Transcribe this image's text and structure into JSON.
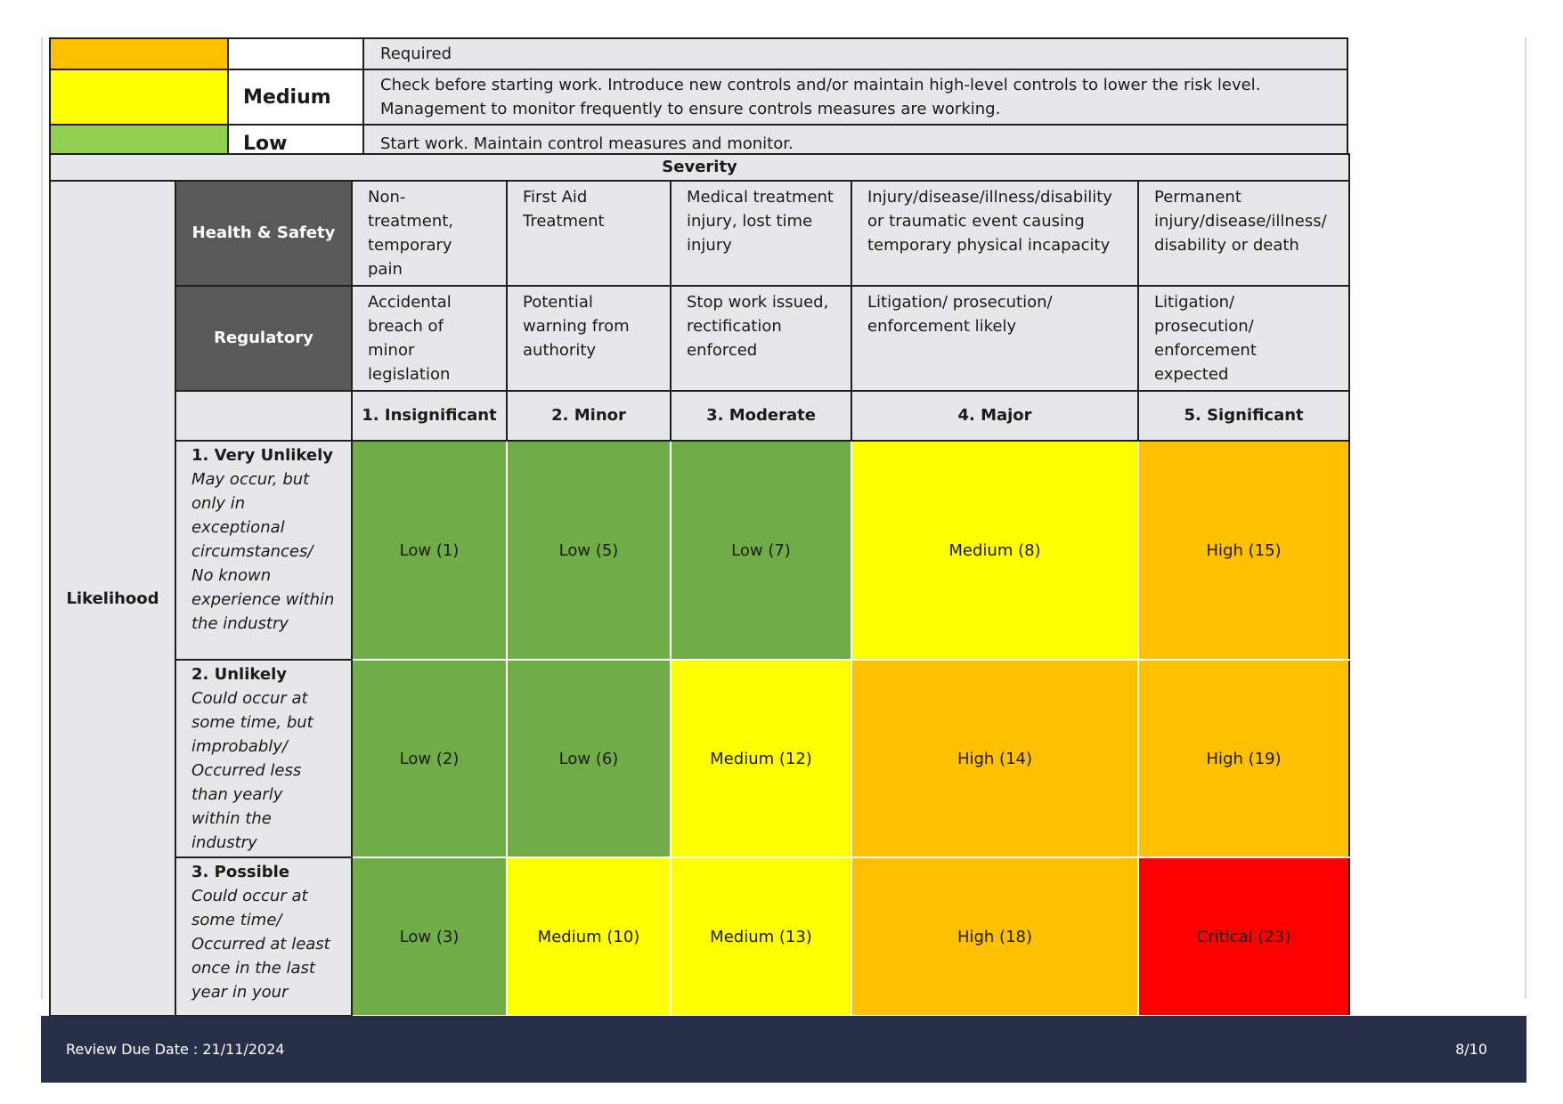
{
  "legend": [
    {
      "level": "",
      "color": "#ffc000",
      "description": "Required"
    },
    {
      "level": "Medium",
      "color": "#ffff00",
      "description": "Check before starting work. Introduce new controls and/or maintain high-level controls to lower the risk level. Management to monitor frequently to ensure controls measures are working."
    },
    {
      "level": "Low",
      "color": "#92d050",
      "description": "Start work. Maintain control measures and monitor."
    }
  ],
  "matrix": {
    "severity_title": "Severity",
    "likelihood_title": "Likelihood",
    "health_safety_label": "Health & Safety",
    "regulatory_label": "Regulatory",
    "health_safety": [
      "Non-treatment, temporary pain",
      "First Aid Treatment",
      "Medical treatment injury, lost time injury",
      "Injury/disease/illness/disability or traumatic event causing temporary physical incapacity",
      "Permanent injury/disease/illness/ disability or death"
    ],
    "regulatory": [
      "Accidental breach of minor legislation",
      "Potential warning from authority",
      "Stop work issued, rectification enforced",
      "Litigation/ prosecution/ enforcement likely",
      "Litigation/ prosecution/ enforcement expected"
    ],
    "severity_levels": [
      "1. Insignificant",
      "2. Minor",
      "3. Moderate",
      "4. Major",
      "5. Significant"
    ],
    "likelihood": [
      {
        "title": "1. Very Unlikely",
        "desc": "May occur, but only in exceptional circumstances/ No known experience within the industry"
      },
      {
        "title": "2. Unlikely",
        "desc": "Could occur at some time, but improbably/ Occurred less than yearly within the industry"
      },
      {
        "title": "3. Possible",
        "desc": "Could occur at some time/ Occurred at least once in the last year in your"
      }
    ],
    "rows": [
      [
        "Low (1)",
        "Low (5)",
        "Low (7)",
        "Medium (8)",
        "High (15)"
      ],
      [
        "Low (2)",
        "Low (6)",
        "Medium (12)",
        "High (14)",
        "High (19)"
      ],
      [
        "Low (3)",
        "Medium (10)",
        "Medium (13)",
        "High (18)",
        "Critical (23)"
      ]
    ],
    "colors": {
      "Low": "#70ad47",
      "Medium": "#ffff00",
      "High": "#ffc000",
      "Critical": "#ff0000"
    }
  },
  "footer": {
    "review": "Review Due Date : 21/11/2024",
    "page": "8/10"
  }
}
